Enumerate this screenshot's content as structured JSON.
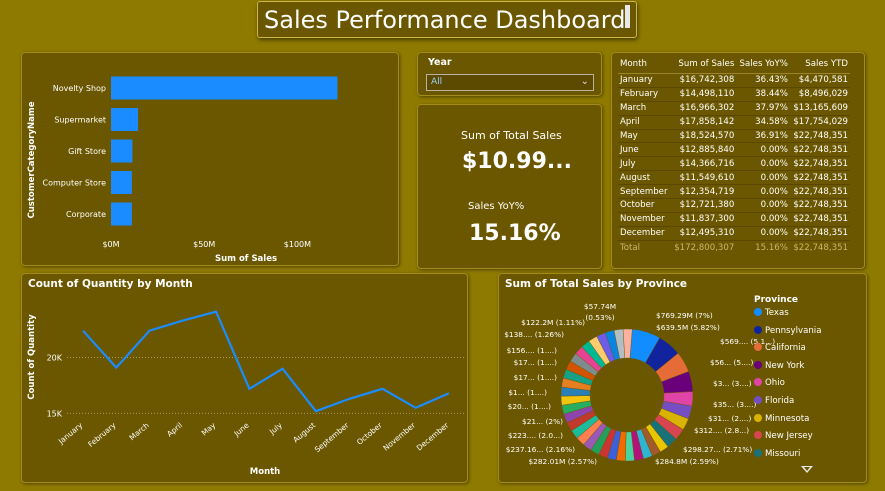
{
  "page": {
    "title": "Sales Performance Dashboard"
  },
  "bar_chart": {
    "ylabel": "CustomerCategoryName",
    "xlabel": "Sum of Sales",
    "bars_color": "#1a8cff",
    "chart_data": {
      "type": "bar",
      "orientation": "horizontal",
      "categories": [
        "Novelty Shop",
        "Supermarket",
        "Gift Store",
        "Computer Store",
        "Corporate"
      ],
      "values": [
        121500000,
        14500000,
        11500000,
        11200000,
        11200000
      ],
      "xlabel": "Sum of Sales",
      "ylabel": "CustomerCategoryName",
      "xlim": [
        0,
        140000000
      ],
      "xticks": [
        "$0M",
        "$50M",
        "$100M"
      ]
    }
  },
  "slicer": {
    "title": "Year",
    "value": "All"
  },
  "cards": {
    "total_sales_label": "Sum of Total Sales",
    "total_sales_value": "$10.99...",
    "yoy_label": "Sales YoY%",
    "yoy_value": "15.16%"
  },
  "matrix": {
    "headers": [
      "Month",
      "Sum of Sales",
      "Sales YoY%",
      "Sales YTD"
    ],
    "rows": [
      [
        "January",
        "$16,742,308",
        "36.43%",
        "$4,470,581"
      ],
      [
        "February",
        "$14,498,110",
        "38.44%",
        "$8,496,029"
      ],
      [
        "March",
        "$16,966,302",
        "37.97%",
        "$13,165,609"
      ],
      [
        "April",
        "$17,858,142",
        "34.58%",
        "$17,754,029"
      ],
      [
        "May",
        "$18,524,570",
        "36.91%",
        "$22,748,351"
      ],
      [
        "June",
        "$12,885,840",
        "0.00%",
        "$22,748,351"
      ],
      [
        "July",
        "$14,366,716",
        "0.00%",
        "$22,748,351"
      ],
      [
        "August",
        "$11,549,610",
        "0.00%",
        "$22,748,351"
      ],
      [
        "September",
        "$12,354,719",
        "0.00%",
        "$22,748,351"
      ],
      [
        "October",
        "$12,721,380",
        "0.00%",
        "$22,748,351"
      ],
      [
        "November",
        "$11,837,300",
        "0.00%",
        "$22,748,351"
      ],
      [
        "December",
        "$12,495,310",
        "0.00%",
        "$22,748,351"
      ]
    ],
    "total": [
      "Total",
      "$172,800,307",
      "15.16%",
      "$22,748,351"
    ]
  },
  "line_chart": {
    "title": "Count of Quantity by Month",
    "xlabel": "Month",
    "ylabel": "Count of Quantity",
    "line_color": "#1a8cff",
    "chart_data": {
      "type": "line",
      "categories": [
        "January",
        "February",
        "March",
        "April",
        "May",
        "June",
        "July",
        "August",
        "September",
        "October",
        "November",
        "December"
      ],
      "values": [
        22400,
        19100,
        22400,
        23300,
        24100,
        17200,
        19000,
        15200,
        16300,
        17200,
        15500,
        16800
      ],
      "ylim": [
        14500,
        25500
      ],
      "yticks": [
        "15K",
        "20K"
      ],
      "ytick_values": [
        15000,
        20000
      ],
      "xlabel": "Month",
      "ylabel": "Count of Quantity"
    }
  },
  "donut": {
    "title": "Sum of Total Sales by Province",
    "legend_title": "Province",
    "legend": [
      {
        "name": "Texas",
        "color": "#118dff"
      },
      {
        "name": "Pennsylvania",
        "color": "#12239e"
      },
      {
        "name": "California",
        "color": "#e66c37"
      },
      {
        "name": "New York",
        "color": "#6b007b"
      },
      {
        "name": "Ohio",
        "color": "#e044a7"
      },
      {
        "name": "Florida",
        "color": "#744ec2"
      },
      {
        "name": "Minnesota",
        "color": "#d9b300"
      },
      {
        "name": "New Jersey",
        "color": "#d64550"
      },
      {
        "name": "Missouri",
        "color": "#197278"
      }
    ],
    "right_labels": [
      "$769.29M (7%)",
      "$639.5M (5.82%)",
      "$569.... (5.1...)",
      "$56... (5....)",
      "$3... (3....)",
      "$35... (3....)",
      "$31... (2....)",
      "$312.... (2.8...)",
      "$298.27... (2.71%)",
      "$284.8M (2.59%)"
    ],
    "left_labels": [
      "$122.2M (1.11%)",
      "$138.... (1.26%)",
      "$156.... (1....)",
      "$17... (1....)",
      "$17... (1....)",
      "$1... (1....)",
      "$20... (1....)",
      "$21... (2%)",
      "$223.... (2.0...)",
      "$237.16... (2.16%)",
      "$282.01M (2.57%)"
    ],
    "top_labels": [
      "$57.74M",
      "(0.53%)"
    ],
    "chart_data": {
      "type": "pie",
      "title": "Sum of Total Sales by Province",
      "slices": [
        {
          "name": "Texas",
          "percent": 7.0
        },
        {
          "name": "Pennsylvania",
          "percent": 5.82
        },
        {
          "name": "California",
          "percent": 5.1
        },
        {
          "name": "New York",
          "percent": 5.0
        },
        {
          "name": "Ohio",
          "percent": 3.5
        },
        {
          "name": "Florida",
          "percent": 3.2
        },
        {
          "name": "Minnesota",
          "percent": 2.9
        },
        {
          "name": "New Jersey",
          "percent": 2.84
        },
        {
          "name": "Missouri",
          "percent": 2.71
        }
      ]
    },
    "other_colors": [
      "#e8c600",
      "#a05a2c",
      "#2fb5d4",
      "#b3127a",
      "#4ad4a1",
      "#f06c00",
      "#3d5fd9",
      "#cc3333",
      "#22a05b",
      "#9b59b6",
      "#ff7f50",
      "#1abc9c",
      "#c0392b",
      "#8e44ad",
      "#27ae60",
      "#f1c40f",
      "#2980b9",
      "#e67e22",
      "#16a085",
      "#d35400",
      "#7f8c8d",
      "#e84393",
      "#00b894",
      "#fdcb6e",
      "#6c5ce7",
      "#0984e3",
      "#b2bec3",
      "#fab1a0"
    ]
  }
}
